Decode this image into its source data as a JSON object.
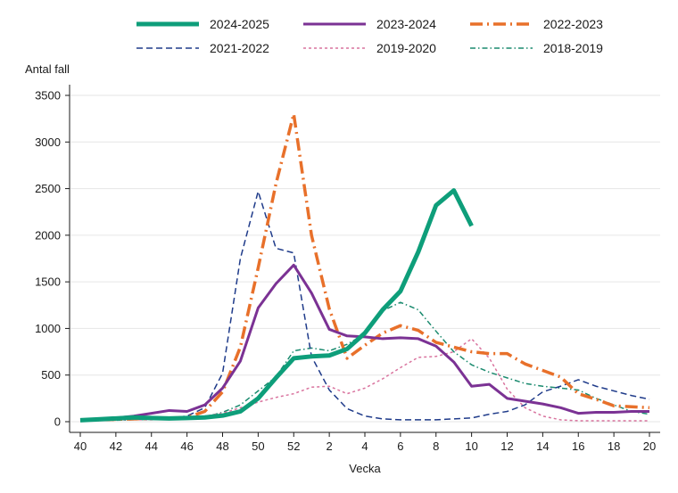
{
  "chart_data": {
    "type": "line",
    "title": "",
    "xlabel": "Vecka",
    "ylabel": "Antal fall",
    "ylim": [
      0,
      3500
    ],
    "yticks": [
      0,
      500,
      1000,
      1500,
      2000,
      2500,
      3000,
      3500
    ],
    "grid": true,
    "legend_position": "top",
    "categories": [
      "40",
      "41",
      "42",
      "43",
      "44",
      "45",
      "46",
      "47",
      "48",
      "49",
      "50",
      "51",
      "52",
      "1",
      "2",
      "3",
      "4",
      "5",
      "6",
      "7",
      "8",
      "9",
      "10",
      "11",
      "12",
      "13",
      "14",
      "15",
      "16",
      "17",
      "18",
      "19",
      "20"
    ],
    "xtick_labels": [
      "40",
      "42",
      "44",
      "46",
      "48",
      "50",
      "52",
      "2",
      "4",
      "6",
      "8",
      "10",
      "12",
      "14",
      "16",
      "18",
      "20"
    ],
    "series": [
      {
        "name": "2024-2025",
        "color": "#0e9e7a",
        "style": "solid-thick",
        "values": [
          15,
          25,
          35,
          45,
          40,
          35,
          40,
          45,
          65,
          110,
          250,
          470,
          680,
          700,
          710,
          780,
          950,
          1200,
          1400,
          1820,
          2320,
          2480,
          2100,
          null,
          null,
          null,
          null,
          null,
          null,
          null,
          null,
          null,
          null
        ]
      },
      {
        "name": "2023-2024",
        "color": "#7b3294",
        "style": "solid",
        "values": [
          20,
          30,
          40,
          60,
          90,
          120,
          110,
          180,
          360,
          650,
          1220,
          1480,
          1680,
          1380,
          990,
          920,
          910,
          890,
          900,
          890,
          810,
          640,
          380,
          400,
          250,
          220,
          190,
          150,
          90,
          100,
          100,
          110,
          110
        ]
      },
      {
        "name": "2022-2023",
        "color": "#e8702a",
        "style": "dash-dot",
        "values": [
          15,
          20,
          25,
          30,
          35,
          40,
          45,
          110,
          320,
          800,
          1650,
          2550,
          3300,
          2000,
          1210,
          680,
          820,
          950,
          1030,
          980,
          850,
          800,
          750,
          730,
          730,
          620,
          550,
          480,
          300,
          240,
          170,
          160,
          150
        ]
      },
      {
        "name": "2021-2022",
        "color": "#1f3b8a",
        "style": "dash",
        "values": [
          10,
          15,
          20,
          25,
          30,
          40,
          60,
          150,
          520,
          1750,
          2470,
          1860,
          1810,
          700,
          340,
          140,
          60,
          30,
          20,
          20,
          20,
          30,
          40,
          80,
          110,
          180,
          320,
          380,
          450,
          380,
          330,
          280,
          240
        ]
      },
      {
        "name": "2019-2020",
        "color": "#d9739e",
        "style": "dot",
        "values": [
          10,
          15,
          20,
          20,
          20,
          25,
          35,
          60,
          90,
          150,
          210,
          260,
          300,
          370,
          380,
          300,
          360,
          460,
          580,
          690,
          700,
          750,
          890,
          680,
          350,
          150,
          60,
          20,
          10,
          10,
          10,
          10,
          10
        ]
      },
      {
        "name": "2018-2019",
        "color": "#1a8a6e",
        "style": "dash-dot-fine",
        "values": [
          10,
          12,
          15,
          20,
          25,
          30,
          35,
          50,
          100,
          180,
          330,
          480,
          760,
          790,
          760,
          830,
          940,
          1190,
          1280,
          1200,
          970,
          750,
          610,
          530,
          470,
          410,
          380,
          360,
          340,
          250,
          180,
          110,
          80
        ]
      }
    ]
  }
}
